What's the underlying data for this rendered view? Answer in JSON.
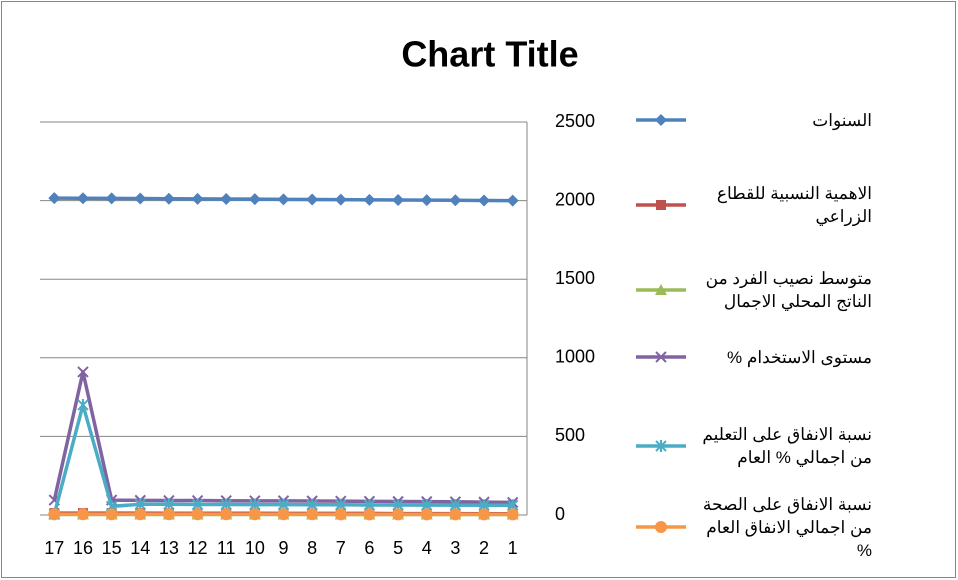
{
  "chart_data": {
    "type": "line",
    "title": "Chart Title",
    "categories": [
      "1",
      "2",
      "3",
      "4",
      "5",
      "6",
      "7",
      "8",
      "9",
      "10",
      "11",
      "12",
      "13",
      "14",
      "15",
      "16",
      "17"
    ],
    "x_reversed": true,
    "y_axis_side": "right",
    "legend": "right",
    "grid": true,
    "ylim": [
      0,
      2500
    ],
    "yticks": [
      0,
      500,
      1000,
      1500,
      2000,
      2500
    ],
    "series": [
      {
        "name": "السنوات",
        "color": "#4f81bd",
        "marker": "diamond",
        "values": [
          2000,
          2001,
          2002,
          2003,
          2004,
          2005,
          2006,
          2007,
          2008,
          2009,
          2010,
          2011,
          2012,
          2013,
          2014,
          2015,
          2016
        ]
      },
      {
        "name": "الاهمية النسبية للقطاع الزراعي",
        "color": "#c0504d",
        "marker": "square",
        "values": [
          8,
          8,
          9,
          9,
          9,
          10,
          10,
          10,
          10,
          11,
          11,
          11,
          11,
          12,
          12,
          12,
          12
        ]
      },
      {
        "name": "متوسط نصيب الفرد من الناتج المحلي الاجمال",
        "color": "#9bbb59",
        "marker": "triangle",
        "values": [
          3,
          3,
          3,
          3,
          3,
          3,
          3,
          3,
          3,
          3,
          3,
          3,
          3,
          3,
          3,
          3,
          3
        ]
      },
      {
        "name": "مستوى الاستخدام %",
        "color": "#8064a2",
        "marker": "x",
        "values": [
          80,
          82,
          84,
          85,
          86,
          87,
          88,
          89,
          90,
          90,
          91,
          92,
          92,
          93,
          95,
          910,
          95
        ]
      },
      {
        "name": "نسبة الانفاق على التعليم من اجمالي % العام",
        "color": "#4bacc6",
        "marker": "star",
        "values": [
          62,
          62,
          63,
          63,
          64,
          64,
          65,
          65,
          66,
          66,
          67,
          67,
          68,
          68,
          55,
          700,
          5
        ]
      },
      {
        "name": "نسبة الانفاق على الصحة من اجمالي الانفاق العام %",
        "color": "#f79646",
        "marker": "circle",
        "values": [
          4,
          4,
          4,
          4,
          4,
          4,
          4,
          5,
          5,
          5,
          5,
          5,
          5,
          5,
          5,
          5,
          5
        ]
      }
    ]
  }
}
